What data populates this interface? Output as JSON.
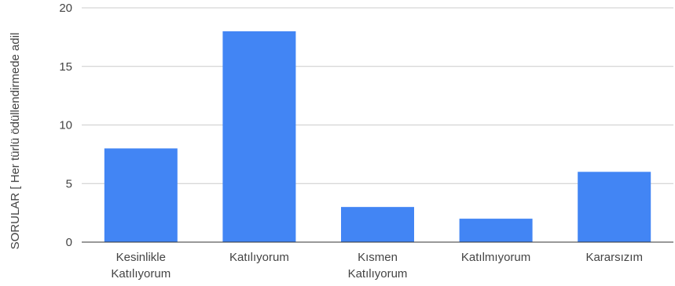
{
  "chart_data": {
    "type": "bar",
    "title": "",
    "xlabel": "",
    "ylabel": "SORULAR [ Her türlü ödüllendirmede adil",
    "categories": [
      [
        "Kesinlikle",
        "Katılıyorum"
      ],
      [
        "Katılıyorum"
      ],
      [
        "Kısmen",
        "Katılıyorum"
      ],
      [
        "Katılmıyorum"
      ],
      [
        "Kararsızım"
      ]
    ],
    "values": [
      8,
      18,
      3,
      2,
      6
    ],
    "ylim": [
      0,
      20
    ],
    "yticks": [
      0,
      5,
      10,
      15,
      20
    ],
    "grid": true,
    "legend": "none",
    "bar_color": "#4285f4",
    "grid_color": "#cccccc",
    "text_color": "#444444"
  }
}
